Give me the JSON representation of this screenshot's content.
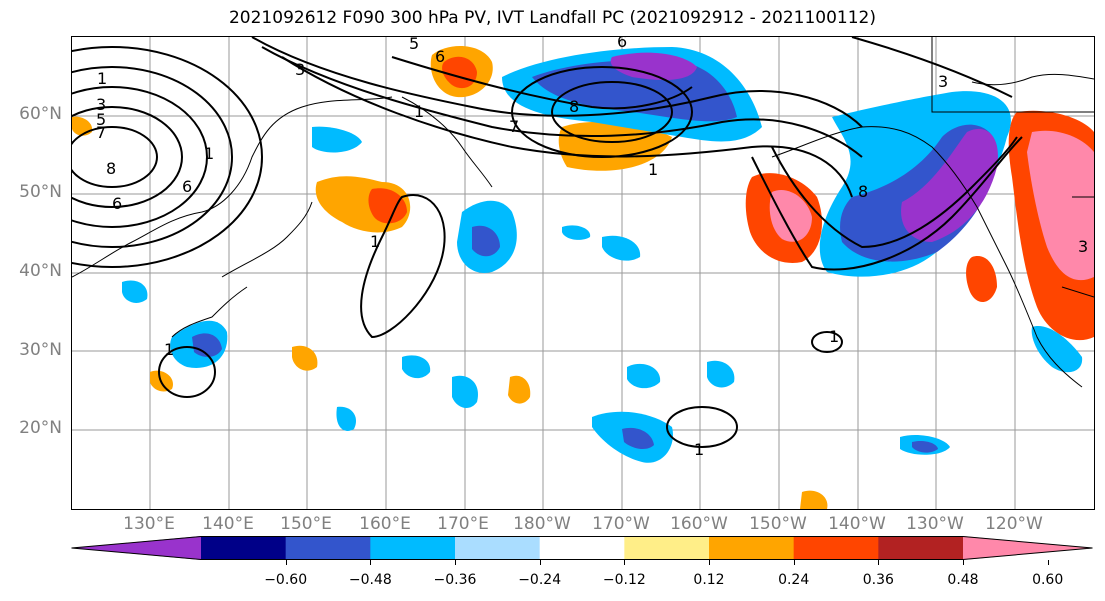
{
  "title": "2021092612 F090 300 hPa PV, IVT Landfall PC (2021092912 - 2021100112)",
  "map": {
    "lat_labels": [
      "60°N",
      "50°N",
      "40°N",
      "30°N",
      "20°N"
    ],
    "lon_labels": [
      "130°E",
      "140°E",
      "150°E",
      "160°E",
      "170°E",
      "180°W",
      "170°W",
      "160°W",
      "150°W",
      "140°W",
      "130°W",
      "120°W"
    ],
    "contour_labels": [
      "1",
      "3",
      "5",
      "6",
      "7",
      "8",
      "6",
      "5",
      "6",
      "3",
      "8",
      "7",
      "1",
      "6",
      "3",
      "1",
      "1",
      "1",
      "8",
      "1",
      "1",
      "3",
      "1"
    ],
    "label_color": "#808080"
  },
  "colorbar": {
    "colors": [
      "#9933cc",
      "#000088",
      "#3355cc",
      "#00bbff",
      "#aaddff",
      "#ffffff",
      "#ffee88",
      "#ffa500",
      "#ff4500",
      "#b22222",
      "#ff88aa"
    ],
    "ticks": [
      "−0.60",
      "−0.48",
      "−0.36",
      "−0.24",
      "−0.12",
      "0.12",
      "0.24",
      "0.36",
      "0.48",
      "0.60"
    ]
  }
}
